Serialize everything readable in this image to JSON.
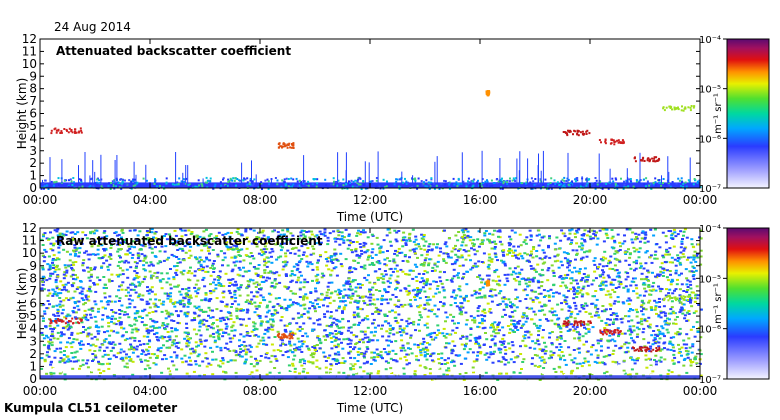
{
  "date": "24 Aug 2014",
  "instrument": "Kumpula CL51 ceilometer",
  "chart_data": [
    {
      "type": "heatmap",
      "title": "Attenuated backscatter coefficient",
      "xlabel": "Time (UTC)",
      "ylabel": "Height (km)",
      "x_ticks": [
        "00:00",
        "04:00",
        "08:00",
        "12:00",
        "16:00",
        "20:00",
        "00:00"
      ],
      "y_ticks": [
        "0",
        "1",
        "2",
        "3",
        "4",
        "5",
        "6",
        "7",
        "8",
        "9",
        "10",
        "11",
        "12"
      ],
      "xlim": [
        0,
        24
      ],
      "ylim": [
        0,
        12
      ],
      "colorbar": {
        "label": "m⁻¹ sr⁻¹",
        "ticks": [
          "10⁻⁴",
          "10⁻⁵",
          "10⁻⁶",
          "10⁻⁷"
        ],
        "scale": "log",
        "range": [
          1e-07,
          0.0001
        ]
      }
    },
    {
      "type": "heatmap",
      "title": "Raw attenuated backscatter coefficient",
      "xlabel": "Time (UTC)",
      "ylabel": "Height (km)",
      "x_ticks": [
        "00:00",
        "04:00",
        "08:00",
        "12:00",
        "16:00",
        "20:00",
        "00:00"
      ],
      "y_ticks": [
        "0",
        "1",
        "2",
        "3",
        "4",
        "5",
        "6",
        "7",
        "8",
        "9",
        "10",
        "11",
        "12"
      ],
      "xlim": [
        0,
        24
      ],
      "ylim": [
        0,
        12
      ],
      "colorbar": {
        "label": "m⁻¹ sr⁻¹",
        "ticks": [
          "10⁻⁴",
          "10⁻⁵",
          "10⁻⁶",
          "10⁻⁷"
        ],
        "scale": "log",
        "range": [
          1e-07,
          0.0001
        ]
      }
    }
  ]
}
